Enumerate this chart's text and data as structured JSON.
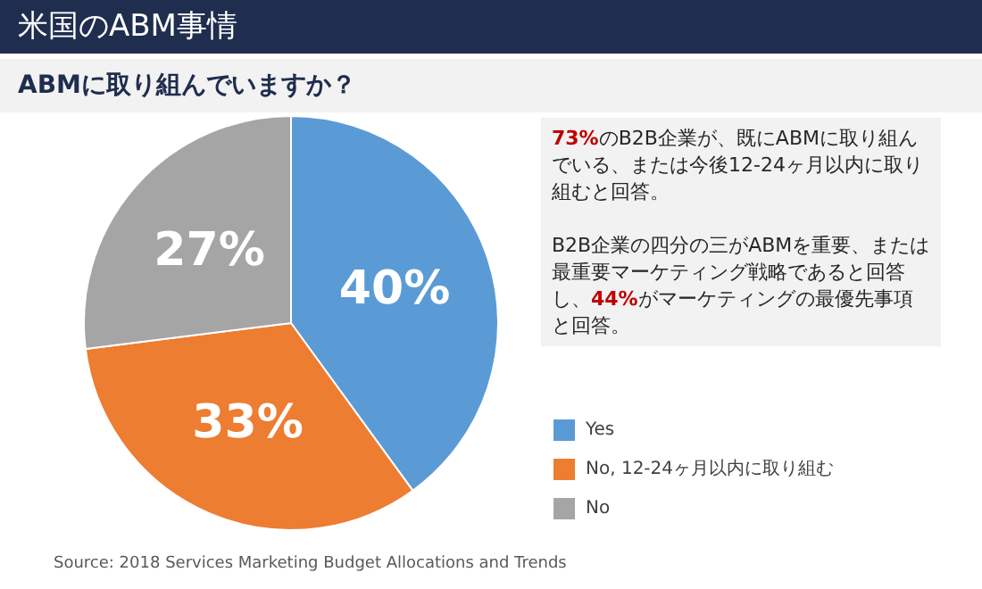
{
  "chart_data": {
    "type": "pie",
    "title": "米国のABM事情",
    "subtitle": "ABMに取り組んでいますか？",
    "categories": [
      "Yes",
      "No, 12-24ヶ月以内に取り組む",
      "No"
    ],
    "values": [
      40,
      33,
      27
    ],
    "colors": [
      "#5b9bd5",
      "#ed7d31",
      "#a5a5a5"
    ],
    "value_labels": [
      "40%",
      "33%",
      "27%"
    ],
    "legend": "right",
    "annotations": [
      "73%のB2B企業が、既にABMに取り組んでいる、または今後12-24ヶ月以内に取り組むと回答。",
      "B2B企業の四分の三がABMを重要、または最重要マーケティング戦略であると回答し、44%がマーケティングの最優先事項と回答。",
      "Source: 2018 Services Marketing Budget Allocations and Trends"
    ]
  }
}
